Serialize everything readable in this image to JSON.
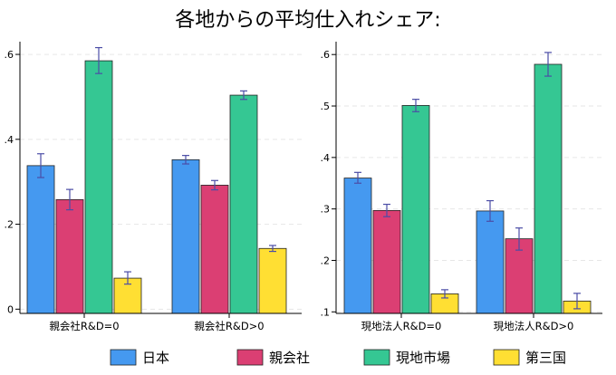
{
  "title": "各地からの平均仕入れシェア:",
  "colors": {
    "日本": "#4599F0",
    "親会社": "#DB3F73",
    "現地市場": "#35C793",
    "第三国": "#FFDF33",
    "errorbar": "#4B4DA6"
  },
  "legend": [
    "日本",
    "親会社",
    "現地市場",
    "第三国"
  ],
  "chart_data": [
    {
      "type": "bar",
      "categories": [
        "親会社R&D=0",
        "親会社R&D>0"
      ],
      "series": [
        {
          "name": "日本",
          "values": [
            0.338,
            0.352
          ],
          "ci_low": [
            0.31,
            0.342
          ],
          "ci_high": [
            0.366,
            0.362
          ]
        },
        {
          "name": "親会社",
          "values": [
            0.258,
            0.292
          ],
          "ci_low": [
            0.234,
            0.281
          ],
          "ci_high": [
            0.282,
            0.303
          ]
        },
        {
          "name": "現地市場",
          "values": [
            0.585,
            0.504
          ],
          "ci_low": [
            0.555,
            0.494
          ],
          "ci_high": [
            0.616,
            0.514
          ]
        },
        {
          "name": "第三国",
          "values": [
            0.073,
            0.143
          ],
          "ci_low": [
            0.059,
            0.136
          ],
          "ci_high": [
            0.088,
            0.15
          ]
        }
      ],
      "yticks": [
        0,
        0.2,
        0.4,
        0.6
      ],
      "ytick_labels": [
        "0",
        ".2",
        ".4",
        ".6"
      ],
      "ylim": [
        -0.01,
        0.63
      ],
      "grid": true
    },
    {
      "type": "bar",
      "categories": [
        "現地法人R&D=0",
        "現地法人R&D>0"
      ],
      "series": [
        {
          "name": "日本",
          "values": [
            0.36,
            0.296
          ],
          "ci_low": [
            0.35,
            0.276
          ],
          "ci_high": [
            0.371,
            0.316
          ]
        },
        {
          "name": "親会社",
          "values": [
            0.297,
            0.242
          ],
          "ci_low": [
            0.285,
            0.22
          ],
          "ci_high": [
            0.309,
            0.263
          ]
        },
        {
          "name": "現地市場",
          "values": [
            0.501,
            0.581
          ],
          "ci_low": [
            0.489,
            0.558
          ],
          "ci_high": [
            0.513,
            0.604
          ]
        },
        {
          "name": "第三国",
          "values": [
            0.135,
            0.121
          ],
          "ci_low": [
            0.127,
            0.106
          ],
          "ci_high": [
            0.143,
            0.136
          ]
        }
      ],
      "yticks": [
        0.1,
        0.2,
        0.3,
        0.4,
        0.5,
        0.6
      ],
      "ytick_labels": [
        ".1",
        ".2",
        ".3",
        ".4",
        ".5",
        ".6"
      ],
      "ylim": [
        0.097,
        0.625
      ],
      "grid": true
    }
  ]
}
